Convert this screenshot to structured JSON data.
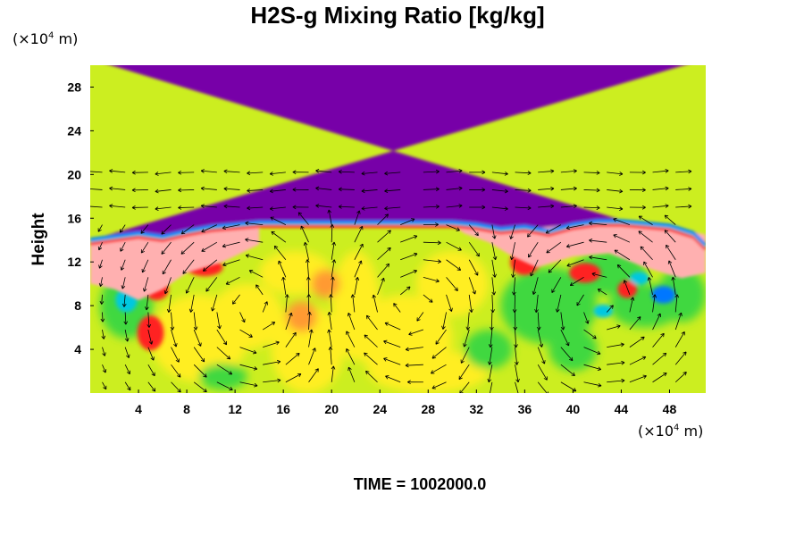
{
  "title": "H2S-g Mixing Ratio [kg/kg]",
  "y_unit": {
    "prefix": "(×10",
    "exp": "4",
    "suffix": " m)"
  },
  "x_unit": {
    "prefix": "(×10",
    "exp": "4",
    "suffix": " m)"
  },
  "time_label": "TIME = 1002000.0",
  "colors": {
    "top_layer": "#7700a8",
    "boundary_blue": "#0077ff",
    "boundary_cyan": "#00c8e0",
    "pink": "#ffb0b0",
    "red": "#ff2020",
    "orange": "#ff9a30",
    "yellow": "#ffee20",
    "yellow_green": "#ccee20",
    "green": "#40d840",
    "arrow": "#000000"
  },
  "chart_data": {
    "type": "heatmap",
    "title": "H2S-g Mixing Ratio [kg/kg]",
    "xlabel": "",
    "ylabel": "Height",
    "x_unit_label": "(×10^4 m)",
    "y_unit_label": "(×10^4 m)",
    "xlim": [
      0,
      51
    ],
    "ylim": [
      0,
      30
    ],
    "x_ticks": [
      4,
      8,
      12,
      16,
      20,
      24,
      28,
      32,
      36,
      40,
      44,
      48
    ],
    "y_ticks": [
      4,
      8,
      12,
      16,
      20,
      24,
      28
    ],
    "boundary_height": [
      [
        0,
        14.0
      ],
      [
        2,
        14.3
      ],
      [
        4,
        14.6
      ],
      [
        6,
        14.3
      ],
      [
        8,
        14.8
      ],
      [
        10,
        15.2
      ],
      [
        12,
        15.4
      ],
      [
        14,
        15.6
      ],
      [
        16,
        15.6
      ],
      [
        20,
        15.6
      ],
      [
        24,
        15.6
      ],
      [
        28,
        15.6
      ],
      [
        30,
        15.6
      ],
      [
        32,
        15.4
      ],
      [
        34,
        15.0
      ],
      [
        36,
        15.2
      ],
      [
        38,
        14.8
      ],
      [
        40,
        15.4
      ],
      [
        42,
        15.7
      ],
      [
        44,
        15.7
      ],
      [
        46,
        15.5
      ],
      [
        48,
        15.3
      ],
      [
        50,
        14.6
      ],
      [
        51,
        13.5
      ]
    ],
    "vector_field": "velocity arrows overlaid on grid",
    "time": 1002000.0
  }
}
